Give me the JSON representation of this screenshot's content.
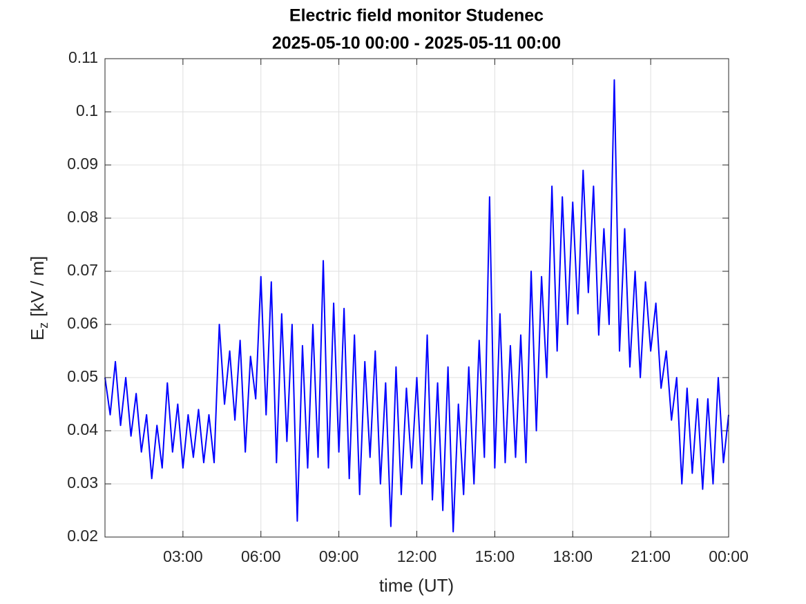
{
  "chart_data": {
    "type": "line",
    "title": "Electric field monitor Studenec",
    "subtitle": "2025-05-10 00:00 - 2025-05-11 00:00",
    "xlabel": "time (UT)",
    "ylabel": {
      "base": "E",
      "subscript": "z",
      "unit": "[kV / m]"
    },
    "color": "#0000ff",
    "grid": true,
    "xlim": [
      0,
      24
    ],
    "xticks": [
      {
        "value": 3,
        "label": "03:00"
      },
      {
        "value": 6,
        "label": "06:00"
      },
      {
        "value": 9,
        "label": "09:00"
      },
      {
        "value": 12,
        "label": "12:00"
      },
      {
        "value": 15,
        "label": "15:00"
      },
      {
        "value": 18,
        "label": "18:00"
      },
      {
        "value": 21,
        "label": "21:00"
      },
      {
        "value": 24,
        "label": "00:00"
      }
    ],
    "ylim": [
      0.02,
      0.11
    ],
    "yticks": [
      0.02,
      0.03,
      0.04,
      0.05,
      0.06,
      0.07,
      0.08,
      0.09,
      0.1,
      0.11
    ],
    "x": [
      0,
      0.2,
      0.4,
      0.6,
      0.8,
      1.0,
      1.2,
      1.4,
      1.6,
      1.8,
      2.0,
      2.2,
      2.4,
      2.6,
      2.8,
      3.0,
      3.2,
      3.4,
      3.6,
      3.8,
      4.0,
      4.2,
      4.4,
      4.6,
      4.8,
      5.0,
      5.2,
      5.4,
      5.6,
      5.8,
      6.0,
      6.2,
      6.4,
      6.6,
      6.8,
      7.0,
      7.2,
      7.4,
      7.6,
      7.8,
      8.0,
      8.2,
      8.4,
      8.6,
      8.8,
      9.0,
      9.2,
      9.4,
      9.6,
      9.8,
      10.0,
      10.2,
      10.4,
      10.6,
      10.8,
      11.0,
      11.2,
      11.4,
      11.6,
      11.8,
      12.0,
      12.2,
      12.4,
      12.6,
      12.8,
      13.0,
      13.2,
      13.4,
      13.6,
      13.8,
      14.0,
      14.2,
      14.4,
      14.6,
      14.8,
      15.0,
      15.2,
      15.4,
      15.6,
      15.8,
      16.0,
      16.2,
      16.4,
      16.6,
      16.8,
      17.0,
      17.2,
      17.4,
      17.6,
      17.8,
      18.0,
      18.2,
      18.4,
      18.6,
      18.8,
      19.0,
      19.2,
      19.4,
      19.6,
      19.8,
      20.0,
      20.2,
      20.4,
      20.6,
      20.8,
      21.0,
      21.2,
      21.4,
      21.6,
      21.8,
      22.0,
      22.2,
      22.4,
      22.6,
      22.8,
      23.0,
      23.2,
      23.4,
      23.6,
      23.8,
      24.0
    ],
    "values": [
      0.05,
      0.043,
      0.053,
      0.041,
      0.05,
      0.039,
      0.047,
      0.036,
      0.043,
      0.031,
      0.041,
      0.033,
      0.049,
      0.036,
      0.045,
      0.033,
      0.043,
      0.035,
      0.044,
      0.034,
      0.043,
      0.034,
      0.06,
      0.045,
      0.055,
      0.042,
      0.057,
      0.036,
      0.054,
      0.046,
      0.069,
      0.043,
      0.068,
      0.034,
      0.062,
      0.038,
      0.06,
      0.023,
      0.056,
      0.033,
      0.06,
      0.035,
      0.072,
      0.033,
      0.064,
      0.036,
      0.063,
      0.031,
      0.058,
      0.028,
      0.053,
      0.035,
      0.055,
      0.03,
      0.049,
      0.022,
      0.052,
      0.028,
      0.048,
      0.033,
      0.05,
      0.03,
      0.058,
      0.027,
      0.049,
      0.025,
      0.052,
      0.021,
      0.045,
      0.028,
      0.052,
      0.03,
      0.057,
      0.035,
      0.084,
      0.033,
      0.062,
      0.034,
      0.056,
      0.035,
      0.058,
      0.034,
      0.07,
      0.04,
      0.069,
      0.05,
      0.086,
      0.055,
      0.084,
      0.06,
      0.083,
      0.062,
      0.089,
      0.066,
      0.086,
      0.058,
      0.078,
      0.06,
      0.106,
      0.055,
      0.078,
      0.052,
      0.07,
      0.05,
      0.068,
      0.055,
      0.064,
      0.048,
      0.055,
      0.042,
      0.05,
      0.03,
      0.048,
      0.032,
      0.046,
      0.029,
      0.046,
      0.03,
      0.05,
      0.034,
      0.043
    ]
  }
}
